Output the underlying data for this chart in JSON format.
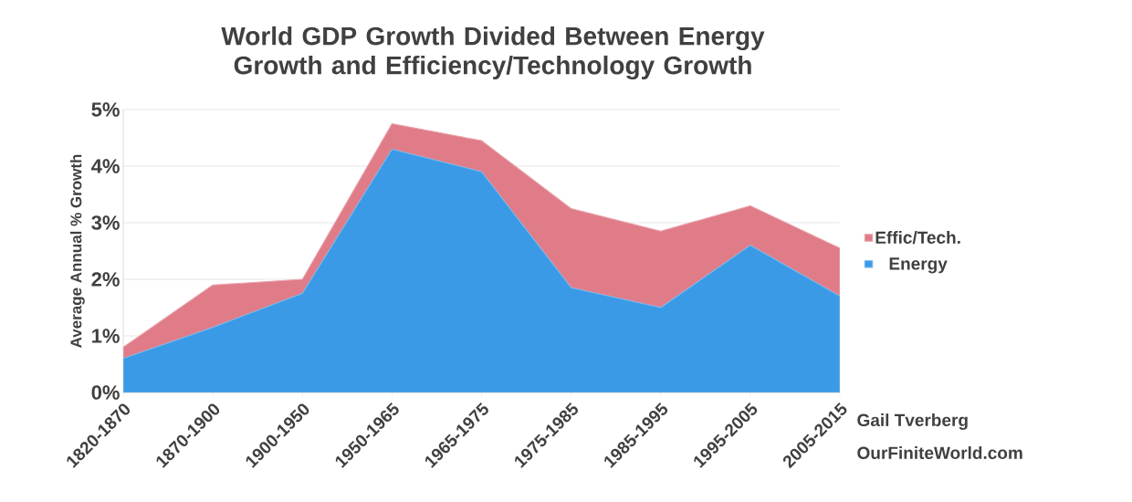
{
  "chart_data": {
    "type": "area",
    "stacked": true,
    "title": "World GDP Growth Divided Between Energy Growth and Efficiency/Technology Growth",
    "ylabel": "Average Annual % Growth",
    "categories": [
      "1820-1870",
      "1870-1900",
      "1900-1950",
      "1950-1965",
      "1965-1975",
      "1975-1985",
      "1985-1995",
      "1995-2005",
      "2005-2015"
    ],
    "series": [
      {
        "name": "Energy",
        "color": "#3a9ae6",
        "values": [
          0.6,
          1.15,
          1.75,
          4.3,
          3.9,
          1.85,
          1.5,
          2.6,
          1.7
        ]
      },
      {
        "name": "Effic/Tech.",
        "color": "#e07c88",
        "values": [
          0.2,
          0.75,
          0.25,
          0.45,
          0.55,
          1.4,
          1.35,
          0.7,
          0.85
        ]
      }
    ],
    "ylim": [
      0,
      5
    ],
    "yticks": [
      {
        "value": 0,
        "label": "0%"
      },
      {
        "value": 1,
        "label": "1%"
      },
      {
        "value": 2,
        "label": "2%"
      },
      {
        "value": 3,
        "label": "3%"
      },
      {
        "value": 4,
        "label": "4%"
      },
      {
        "value": 5,
        "label": "5%"
      }
    ],
    "grid": "y",
    "legend": "right",
    "annotations": [
      "Gail Tverberg",
      "OurFiniteWorld.com"
    ]
  }
}
